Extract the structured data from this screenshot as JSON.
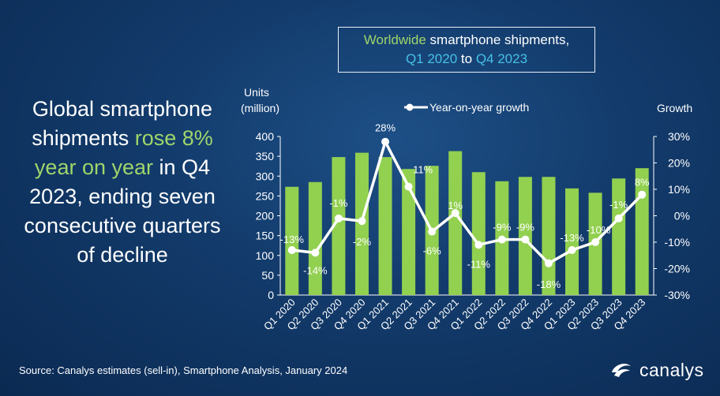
{
  "headline": {
    "part1": "Global smartphone shipments ",
    "highlight": "rose 8% year on year",
    "part2": " in Q4 2023, ending seven consecutive quarters of decline"
  },
  "title_box": {
    "ww": "Worldwide",
    "line1_rest": " smartphone shipments,",
    "start": "Q1 2020",
    "to": " to ",
    "end": "Q4 2023"
  },
  "source": "Source: Canalys estimates (sell-in), Smartphone Analysis, January 2024",
  "logo": {
    "text": "canalys",
    "icon": "canalys-swirl-icon"
  },
  "colors": {
    "bar": "#92d050",
    "line": "#ffffff",
    "highlight": "#9fd56a",
    "quarter": "#46c1e6"
  },
  "chart_data": {
    "type": "bar",
    "categories": [
      "Q1 2020",
      "Q2 2020",
      "Q3 2020",
      "Q4 2020",
      "Q1 2021",
      "Q2 2021",
      "Q3 2021",
      "Q4 2021",
      "Q1 2022",
      "Q2 2022",
      "Q3 2022",
      "Q4 2022",
      "Q1 2023",
      "Q2 2023",
      "Q3 2023",
      "Q4 2023"
    ],
    "series": [
      {
        "kind": "bar",
        "values": [
          273,
          285,
          348,
          359,
          348,
          318,
          326,
          363,
          310,
          287,
          298,
          298,
          269,
          258,
          294,
          320
        ]
      },
      {
        "kind": "line",
        "name": "Year-on-year growth",
        "values": [
          -13,
          -14,
          -1,
          -2,
          28,
          11,
          -6,
          1,
          -11,
          -9,
          -9,
          -18,
          -13,
          -10,
          -1,
          8
        ],
        "labels": [
          "-13%",
          "-14%",
          "-1%",
          "-2%",
          "28%",
          "11%",
          "-6%",
          "1%",
          "-11%",
          "-9%",
          "-9%",
          "-18%",
          "-13%",
          "-10%",
          "-1%",
          "8%"
        ]
      }
    ],
    "ylabel": [
      "Units",
      "(million)"
    ],
    "y2label": "Growth",
    "ylim": [
      0,
      400
    ],
    "yticks": [
      "0",
      "50",
      "100",
      "150",
      "200",
      "250",
      "300",
      "350",
      "400"
    ],
    "y2lim": [
      -30,
      30
    ],
    "y2ticks": [
      "-30%",
      "-20%",
      "-10%",
      "0%",
      "10%",
      "20%",
      "30%"
    ],
    "legend": "top"
  }
}
